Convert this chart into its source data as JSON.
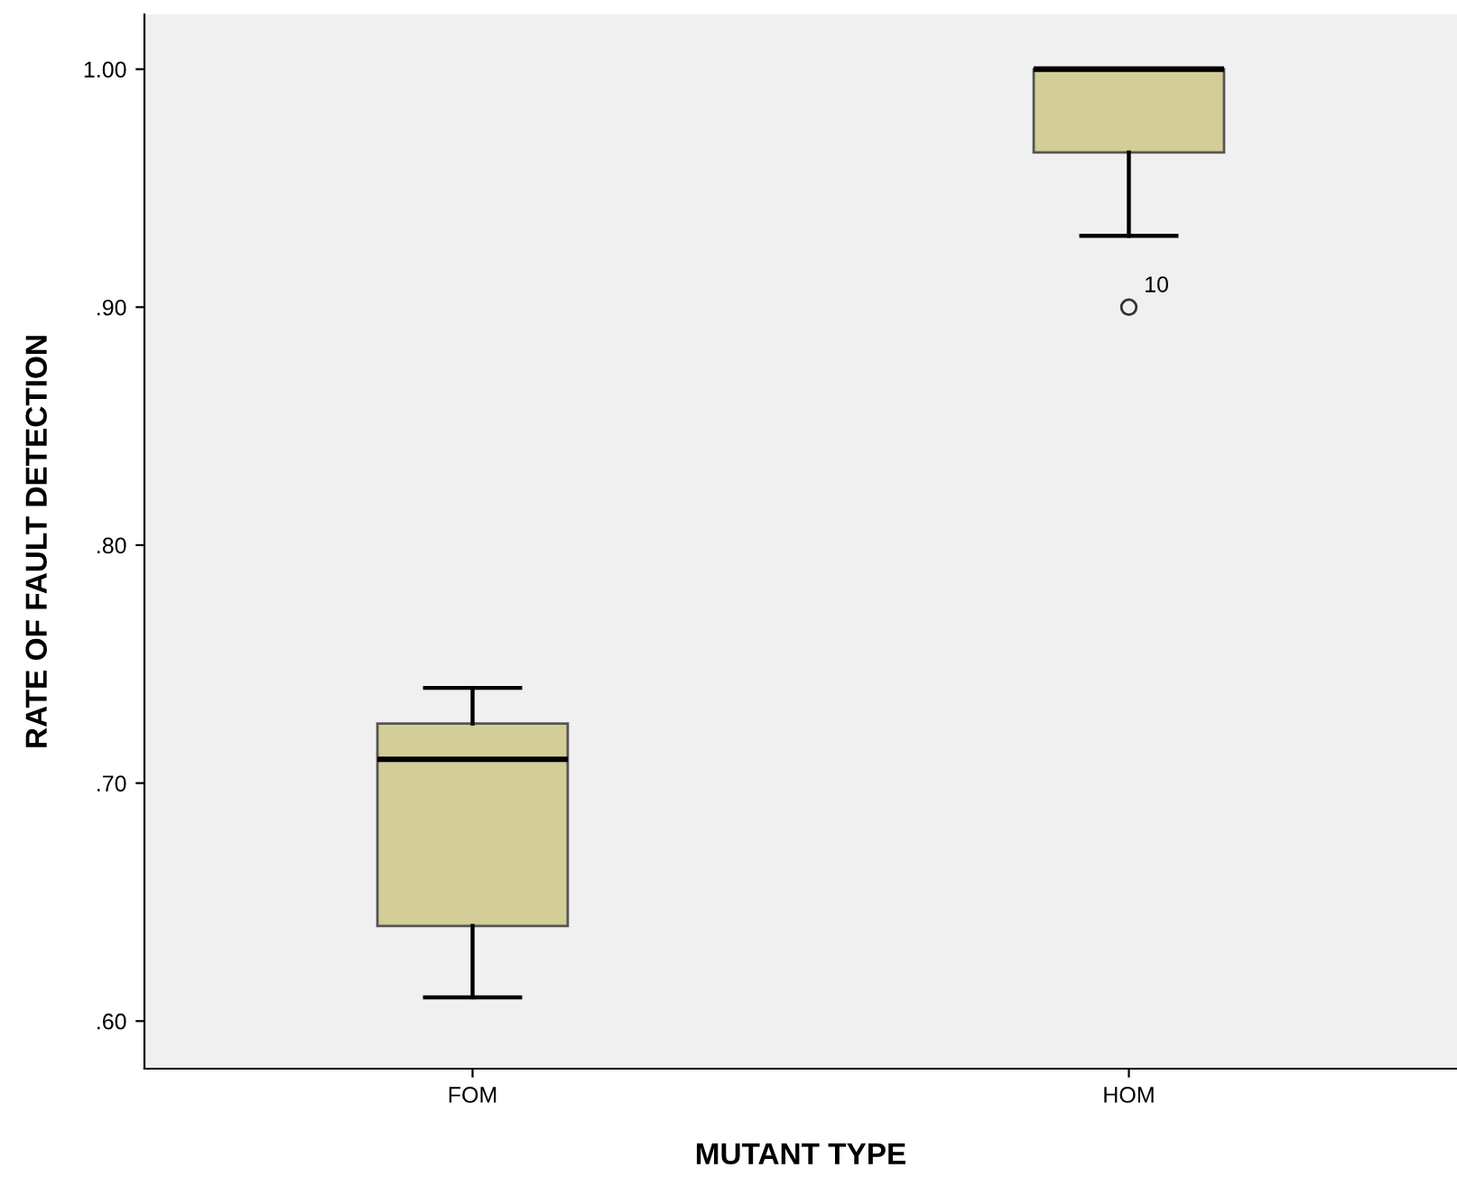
{
  "chart_data": {
    "type": "box",
    "xlabel": "MUTANT TYPE",
    "ylabel": "RATE OF FAULT DETECTION",
    "categories": [
      "FOM",
      "HOM"
    ],
    "boxes": [
      {
        "low": 0.61,
        "q1": 0.64,
        "median": 0.71,
        "q3": 0.725,
        "high": 0.74
      },
      {
        "low": 0.93,
        "q1": 0.965,
        "median": 1.0,
        "q3": 1.0,
        "high": 1.0,
        "outliers": [
          0.9
        ]
      }
    ],
    "color": "#d3ce98",
    "annotations": [
      "10"
    ],
    "ylim": [
      0.58,
      1.023
    ],
    "yticks": [
      {
        "value": 0.6,
        "label": ".60"
      },
      {
        "value": 0.7,
        "label": ".70"
      },
      {
        "value": 0.8,
        "label": ".80"
      },
      {
        "value": 0.9,
        "label": ".90"
      },
      {
        "value": 1.0,
        "label": "1.00"
      }
    ],
    "grid": false,
    "legend": false
  }
}
